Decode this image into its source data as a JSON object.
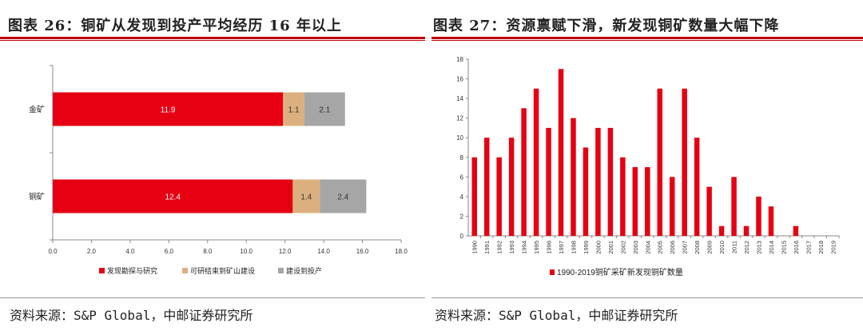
{
  "left": {
    "title": "图表 26：铜矿从发现到投产平均经历 16 年以上",
    "source": "资料来源：S&P Global，中邮证券研究所"
  },
  "right": {
    "title": "图表 27：资源禀赋下滑，新发现铜矿数量大幅下降",
    "source": "资料来源：S&P Global，中邮证券研究所"
  },
  "colors": {
    "red": "#e60012",
    "tan": "#dcb07e",
    "gray": "#a6a6a6",
    "accent": "#c00000"
  },
  "chart_data": [
    {
      "type": "bar",
      "orientation": "horizontal",
      "stacked": true,
      "categories": [
        "金矿",
        "铜矿"
      ],
      "series": [
        {
          "name": "发现勘探与研究",
          "values": [
            11.9,
            12.4
          ]
        },
        {
          "name": "可研结束到矿山建设",
          "values": [
            1.1,
            1.4
          ]
        },
        {
          "name": "建设到投产",
          "values": [
            2.1,
            2.4
          ]
        }
      ],
      "xlim": [
        0,
        18
      ],
      "xticks": [
        "0.0",
        "2.0",
        "4.0",
        "6.0",
        "8.0",
        "10.0",
        "12.0",
        "14.0",
        "16.0",
        "18.0"
      ],
      "legend": "bottom",
      "grid": false
    },
    {
      "type": "bar",
      "categories": [
        "1990",
        "1991",
        "1992",
        "1993",
        "1994",
        "1995",
        "1996",
        "1997",
        "1998",
        "1999",
        "2000",
        "2001",
        "2002",
        "2003",
        "2004",
        "2005",
        "2006",
        "2007",
        "2008",
        "2009",
        "2010",
        "2011",
        "2012",
        "2013",
        "2014",
        "2015",
        "2016",
        "2017",
        "2018",
        "2019"
      ],
      "series": [
        {
          "name": "1990-2019铜矿采矿新发现铜矿数量",
          "values": [
            8,
            10,
            8,
            10,
            13,
            15,
            11,
            17,
            12,
            9,
            11,
            11,
            8,
            7,
            7,
            15,
            6,
            15,
            10,
            5,
            1,
            6,
            1,
            4,
            3,
            0,
            1,
            0,
            0,
            0
          ]
        }
      ],
      "ylim": [
        0,
        18
      ],
      "yticks": [
        "0",
        "2",
        "4",
        "6",
        "8",
        "10",
        "12",
        "14",
        "16",
        "18"
      ],
      "legend": "bottom",
      "grid": false
    }
  ]
}
